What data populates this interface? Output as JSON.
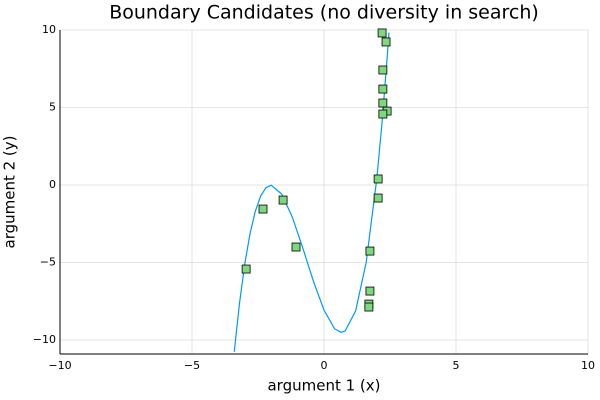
{
  "chart_data": {
    "type": "line",
    "title": "Boundary Candidates (no diversity in search)",
    "x_label": "argument 1 (x)",
    "y_label": "argument 2 (y)",
    "xlim": [
      -10,
      10
    ],
    "ylim": [
      -10.9,
      10
    ],
    "xticks": [
      {
        "value": -10,
        "label": "−10"
      },
      {
        "value": -5,
        "label": "−5"
      },
      0,
      5,
      10
    ],
    "yticks": [
      {
        "value": -10,
        "label": "−10"
      },
      {
        "value": -5,
        "label": "−5"
      },
      0,
      5,
      10
    ],
    "grid": true,
    "series": [
      {
        "type": "line",
        "color": "#009af9",
        "x": [
          -3.4,
          -3.2,
          -3.0,
          -2.8,
          -2.6,
          -2.4,
          -2.2,
          -2.0,
          -1.6,
          -1.2,
          -0.8,
          -0.4,
          0,
          0.4,
          0.65,
          0.8,
          1.2,
          1.6,
          2.0,
          2.2,
          2.4,
          2.46
        ],
        "values": [
          -10.76,
          -7.62,
          -5.08,
          -3.12,
          -1.69,
          -0.71,
          -0.17,
          -0.01,
          -0.59,
          -2.07,
          -4.08,
          -6.21,
          -8.07,
          -9.27,
          -9.5,
          -9.42,
          -8.11,
          -4.97,
          0.41,
          4.05,
          8.39,
          9.84
        ]
      },
      {
        "type": "scatter",
        "color": "#7fd77f",
        "x": [
          -2.95,
          -2.31,
          -1.55,
          -1.06,
          1.74,
          1.74,
          1.7,
          1.7,
          2.05,
          2.05,
          2.35,
          2.2,
          2.23,
          2.23,
          2.23,
          2.39,
          2.23
        ],
        "values": [
          -5.42,
          -1.55,
          -0.97,
          -4.0,
          -4.26,
          -6.84,
          -7.68,
          -7.87,
          0.39,
          -0.84,
          9.23,
          9.81,
          7.42,
          6.19,
          5.29,
          4.77,
          4.58
        ]
      }
    ]
  }
}
